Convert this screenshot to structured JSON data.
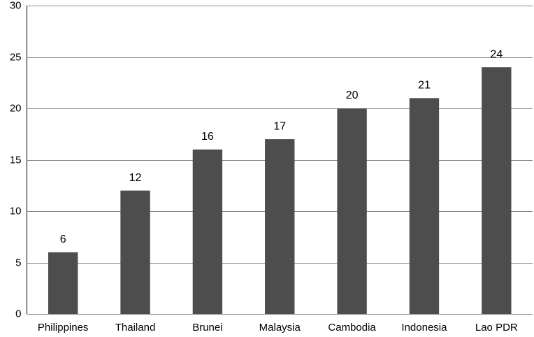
{
  "chart_data": {
    "type": "bar",
    "categories": [
      "Philippines",
      "Thailand",
      "Brunei",
      "Malaysia",
      "Cambodia",
      "Indonesia",
      "Lao PDR"
    ],
    "values": [
      6,
      12,
      16,
      17,
      20,
      21,
      24
    ],
    "color": "#4d4d4d",
    "ylim": [
      0,
      30
    ],
    "yticks": [
      0,
      5,
      10,
      15,
      20,
      25,
      30
    ],
    "grid": true
  }
}
